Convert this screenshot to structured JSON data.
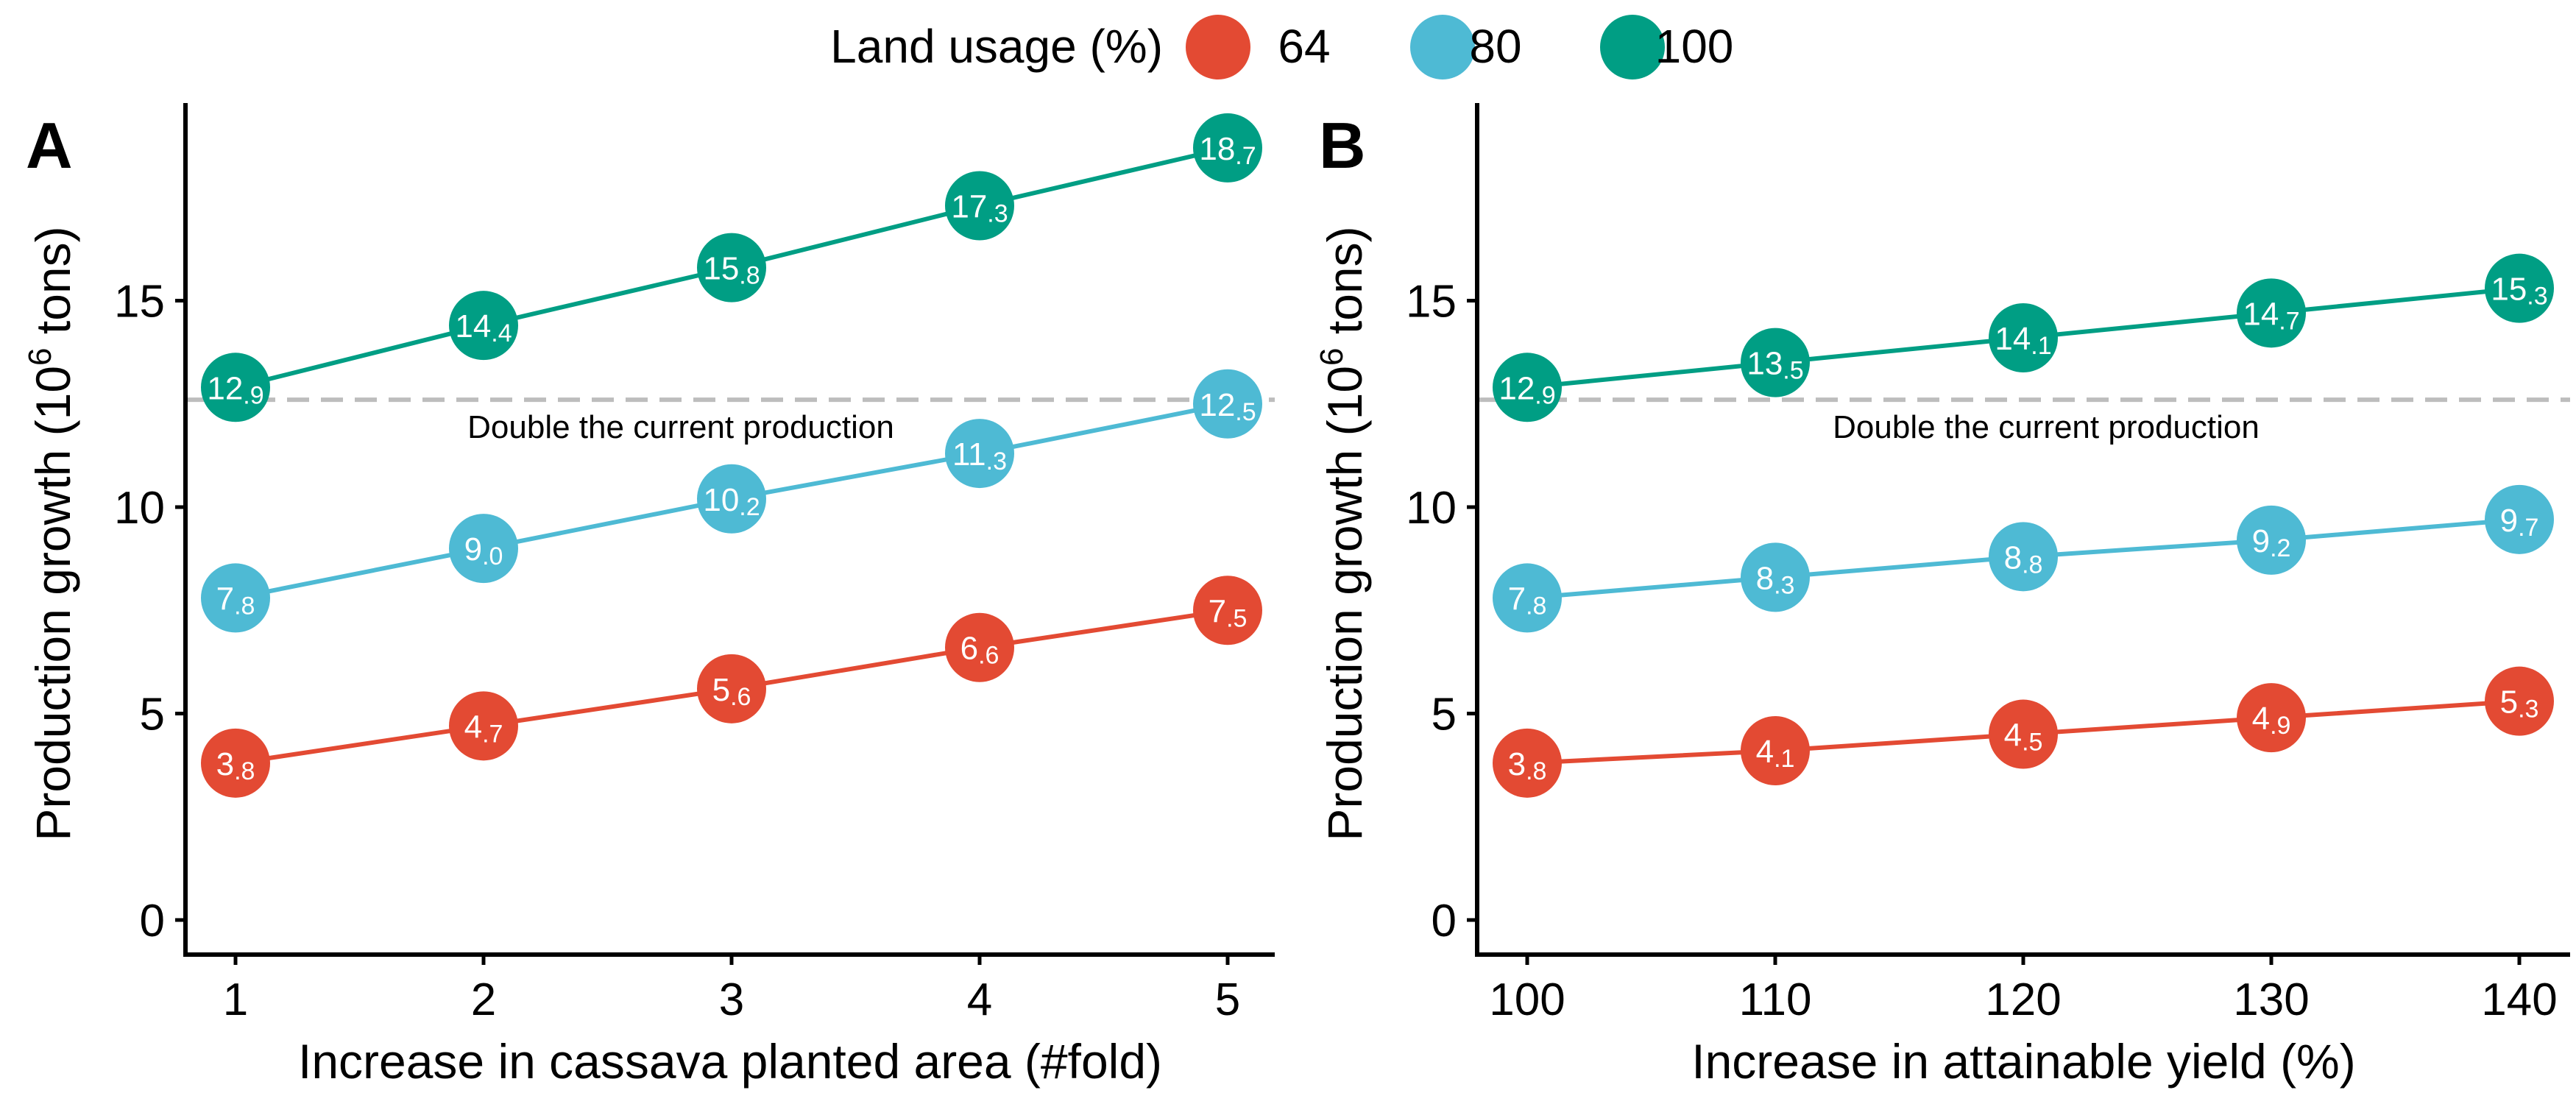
{
  "legend": {
    "title": "Land usage (%)",
    "items": [
      {
        "label": "64",
        "color": "#E34A33"
      },
      {
        "label": "80",
        "color": "#4EBAD4"
      },
      {
        "label": "100",
        "color": "#009E84"
      }
    ]
  },
  "chart_data": [
    {
      "type": "line",
      "panel": "A",
      "xlabel": "Increase in cassava planted area (#fold)",
      "ylabel_main": "Production growth (10",
      "ylabel_sup": "6",
      "ylabel_tail": " tons)",
      "x": [
        "1",
        "2",
        "3",
        "4",
        "5"
      ],
      "ylim": [
        0,
        19.5
      ],
      "yticks": [
        0,
        5,
        10,
        15
      ],
      "reference_line": {
        "y": 12.6,
        "label": "Double the current production"
      },
      "series": [
        {
          "name": "64",
          "color": "#E34A33",
          "values": [
            3.8,
            4.7,
            5.6,
            6.6,
            7.5
          ],
          "labels": [
            [
              "3",
              ".8"
            ],
            [
              "4",
              ".7"
            ],
            [
              "5",
              ".6"
            ],
            [
              "6",
              ".6"
            ],
            [
              "7",
              ".5"
            ]
          ]
        },
        {
          "name": "80",
          "color": "#4EBAD4",
          "values": [
            7.8,
            9.0,
            10.2,
            11.3,
            12.5
          ],
          "labels": [
            [
              "7",
              ".8"
            ],
            [
              "9",
              ".0"
            ],
            [
              "10",
              ".2"
            ],
            [
              "11",
              ".3"
            ],
            [
              "12",
              ".5"
            ]
          ]
        },
        {
          "name": "100",
          "color": "#009E84",
          "values": [
            12.9,
            14.4,
            15.8,
            17.3,
            18.7
          ],
          "labels": [
            [
              "12",
              ".9"
            ],
            [
              "14",
              ".4"
            ],
            [
              "15",
              ".8"
            ],
            [
              "17",
              ".3"
            ],
            [
              "18",
              ".7"
            ]
          ]
        }
      ]
    },
    {
      "type": "line",
      "panel": "B",
      "xlabel": "Increase in attainable yield (%)",
      "ylabel_main": "Production growth (10",
      "ylabel_sup": "6",
      "ylabel_tail": " tons)",
      "x": [
        "100",
        "110",
        "120",
        "130",
        "140"
      ],
      "ylim": [
        0,
        19.5
      ],
      "yticks": [
        0,
        5,
        10,
        15
      ],
      "reference_line": {
        "y": 12.6,
        "label": "Double the current production"
      },
      "series": [
        {
          "name": "64",
          "color": "#E34A33",
          "values": [
            3.8,
            4.1,
            4.5,
            4.9,
            5.3
          ],
          "labels": [
            [
              "3",
              ".8"
            ],
            [
              "4",
              ".1"
            ],
            [
              "4",
              ".5"
            ],
            [
              "4",
              ".9"
            ],
            [
              "5",
              ".3"
            ]
          ]
        },
        {
          "name": "80",
          "color": "#4EBAD4",
          "values": [
            7.8,
            8.3,
            8.8,
            9.2,
            9.7
          ],
          "labels": [
            [
              "7",
              ".8"
            ],
            [
              "8",
              ".3"
            ],
            [
              "8",
              ".8"
            ],
            [
              "9",
              ".2"
            ],
            [
              "9",
              ".7"
            ]
          ]
        },
        {
          "name": "100",
          "color": "#009E84",
          "values": [
            12.9,
            13.5,
            14.1,
            14.7,
            15.3
          ],
          "labels": [
            [
              "12",
              ".9"
            ],
            [
              "13",
              ".5"
            ],
            [
              "14",
              ".1"
            ],
            [
              "14",
              ".7"
            ],
            [
              "15",
              ".3"
            ]
          ]
        }
      ]
    }
  ]
}
